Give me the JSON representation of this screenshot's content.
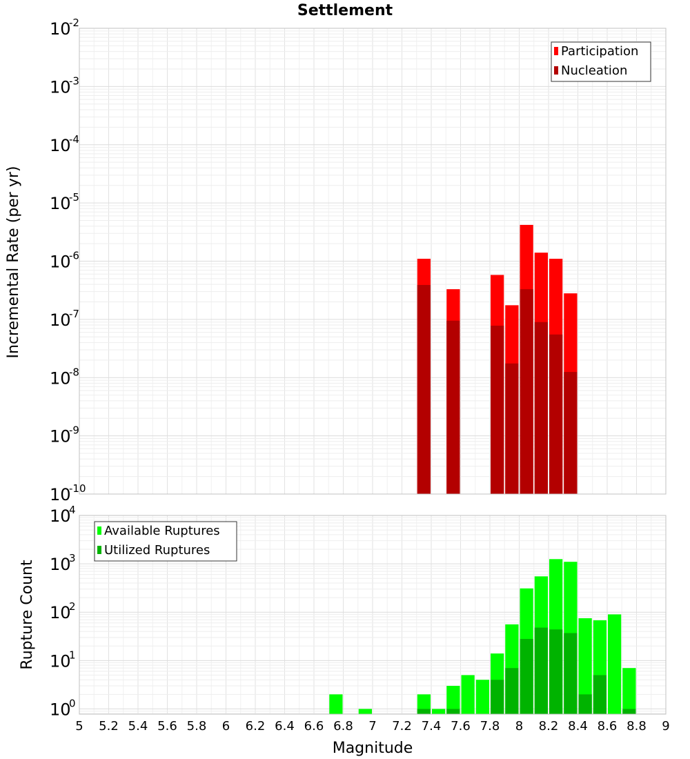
{
  "title": "Settlement",
  "x_axis": {
    "label": "Magnitude",
    "range": [
      5,
      9
    ],
    "ticks": [
      "5",
      "5.2",
      "5.4",
      "5.6",
      "5.8",
      "6",
      "6.2",
      "6.4",
      "6.6",
      "6.8",
      "7",
      "7.2",
      "7.4",
      "7.6",
      "7.8",
      "8",
      "8.2",
      "8.4",
      "8.6",
      "8.8",
      "9"
    ]
  },
  "chart_data": [
    {
      "type": "bar",
      "panel": "top",
      "ylabel": "Incremental Rate (per yr)",
      "yscale": "log",
      "ylim": [
        1e-10,
        0.01
      ],
      "grid": true,
      "legend_position": "top-right",
      "y_ticks": [
        {
          "base": "10",
          "exp": "-10"
        },
        {
          "base": "10",
          "exp": "-9"
        },
        {
          "base": "10",
          "exp": "-8"
        },
        {
          "base": "10",
          "exp": "-7"
        },
        {
          "base": "10",
          "exp": "-6"
        },
        {
          "base": "10",
          "exp": "-5"
        },
        {
          "base": "10",
          "exp": "-4"
        },
        {
          "base": "10",
          "exp": "-3"
        },
        {
          "base": "10",
          "exp": "-2"
        }
      ],
      "x": [
        7.35,
        7.55,
        7.85,
        7.95,
        8.05,
        8.15,
        8.25,
        8.35
      ],
      "series": [
        {
          "name": "Participation",
          "color": "#ff0000",
          "values": [
            1.1e-06,
            3.3e-07,
            5.8e-07,
            1.75e-07,
            4.2e-06,
            1.4e-06,
            1.1e-06,
            2.8e-07
          ]
        },
        {
          "name": "Nucleation",
          "color": "#b30000",
          "values": [
            3.9e-07,
            9.5e-08,
            7.8e-08,
            1.75e-08,
            3.3e-07,
            9e-08,
            5.5e-08,
            1.25e-08
          ]
        }
      ]
    },
    {
      "type": "bar",
      "panel": "bottom",
      "ylabel": "Rupture Count",
      "yscale": "log",
      "ylim": [
        0.78,
        10000
      ],
      "grid": true,
      "legend_position": "top-left",
      "y_ticks": [
        {
          "base": "10",
          "exp": "0"
        },
        {
          "base": "10",
          "exp": "1"
        },
        {
          "base": "10",
          "exp": "2"
        },
        {
          "base": "10",
          "exp": "3"
        },
        {
          "base": "10",
          "exp": "4"
        }
      ],
      "x": [
        6.75,
        6.95,
        7.35,
        7.45,
        7.55,
        7.65,
        7.75,
        7.85,
        7.95,
        8.05,
        8.15,
        8.25,
        8.35,
        8.45,
        8.55,
        8.65,
        8.75
      ],
      "series": [
        {
          "name": "Available Ruptures",
          "color": "#00ff00",
          "values": [
            2,
            1,
            2,
            1,
            3,
            5,
            4,
            14,
            56,
            310,
            550,
            1250,
            1100,
            75,
            68,
            90,
            7
          ]
        },
        {
          "name": "Utilized Ruptures",
          "color": "#00b300",
          "values": [
            0,
            0,
            1,
            0,
            1,
            0,
            0,
            4,
            7,
            28,
            48,
            44,
            37,
            2,
            5,
            0,
            1
          ]
        }
      ]
    }
  ]
}
